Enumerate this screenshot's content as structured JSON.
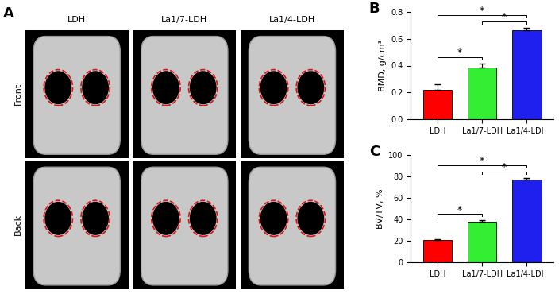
{
  "images": {
    "label": "A",
    "columns": [
      "LDH",
      "La1/7-LDH",
      "La1/4-LDH"
    ],
    "rows": [
      "Front",
      "Back"
    ]
  },
  "chart_data": [
    {
      "type": "bar",
      "title": "B",
      "categories": [
        "LDH",
        "La1/7-LDH",
        "La1/4-LDH"
      ],
      "values": [
        0.22,
        0.385,
        0.665
      ],
      "errors": [
        0.04,
        0.03,
        0.015
      ],
      "colors": [
        "#ff0000",
        "#33ee33",
        "#1f1fee"
      ],
      "ylabel": "BMD, g/cm³",
      "ylim": [
        0.0,
        0.8
      ],
      "yticks": [
        0.0,
        0.2,
        0.4,
        0.6,
        0.8
      ],
      "annotations": [
        {
          "from": "LDH",
          "to": "La1/7-LDH",
          "label": "*"
        },
        {
          "from": "La1/7-LDH",
          "to": "La1/4-LDH",
          "label": "*"
        },
        {
          "from": "LDH",
          "to": "La1/4-LDH",
          "label": "*"
        }
      ]
    },
    {
      "type": "bar",
      "title": "C",
      "categories": [
        "LDH",
        "La1/7-LDH",
        "La1/4-LDH"
      ],
      "values": [
        20.5,
        38,
        77
      ],
      "errors": [
        1,
        1,
        1.5
      ],
      "colors": [
        "#ff0000",
        "#33ee33",
        "#1f1fee"
      ],
      "ylabel": "BV/TV, %",
      "ylim": [
        0,
        100
      ],
      "yticks": [
        0,
        20,
        40,
        60,
        80,
        100
      ],
      "annotations": [
        {
          "from": "LDH",
          "to": "La1/7-LDH",
          "label": "*"
        },
        {
          "from": "La1/7-LDH",
          "to": "La1/4-LDH",
          "label": "*"
        },
        {
          "from": "LDH",
          "to": "La1/4-LDH",
          "label": "*"
        }
      ]
    }
  ]
}
